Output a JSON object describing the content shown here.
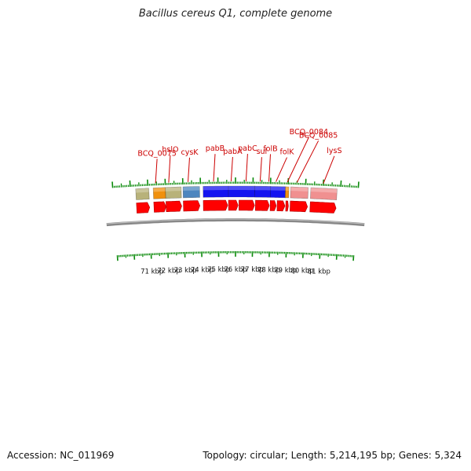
{
  "title": "Bacillus cereus Q1, complete genome",
  "accession": "Accession: NC_011969",
  "summary": "Topology: circular; Length: 5,214,195 bp; Genes: 5,324",
  "colors": {
    "cds_arrow": "#ff0000",
    "gene_label": "#cc0000",
    "tick": "#0a8a0a",
    "backbone": "#888888",
    "olive": "#b8b27a",
    "orange": "#f0900e",
    "steelblue": "#4d86bf",
    "blue": "#1414f0",
    "pink": "#f09090"
  },
  "scale_labels": [
    "71 kbp",
    "72 kbp",
    "73 kbp",
    "74 kbp",
    "75 kbp",
    "76 kbp",
    "77 kbp",
    "78 kbp",
    "79 kbp",
    "80 kbp",
    "81 kbp"
  ],
  "feature_bars": [
    {
      "name": "olive-left",
      "kbp_start": 70.3,
      "kbp_end": 71.05,
      "color": "#b8b27a"
    },
    {
      "name": "BCQ_0075",
      "kbp_start": 71.3,
      "kbp_end": 72.0,
      "color": "#f0900e"
    },
    {
      "name": "hslO",
      "kbp_start": 72.0,
      "kbp_end": 72.9,
      "color": "#b8b27a"
    },
    {
      "name": "cysK",
      "kbp_start": 73.0,
      "kbp_end": 73.95,
      "color": "#4d86bf"
    },
    {
      "name": "pabB",
      "kbp_start": 74.15,
      "kbp_end": 75.6,
      "color": "#1414f0"
    },
    {
      "name": "pabA-pabC",
      "kbp_start": 75.6,
      "kbp_end": 77.1,
      "color": "#1414f0"
    },
    {
      "name": "sul",
      "kbp_start": 77.1,
      "kbp_end": 78.0,
      "color": "#1414f0"
    },
    {
      "name": "folB-folK",
      "kbp_start": 78.0,
      "kbp_end": 78.85,
      "color": "#1414f0"
    },
    {
      "name": "BCQ_0084",
      "kbp_start": 78.85,
      "kbp_end": 79.05,
      "color": "#f0900e"
    },
    {
      "name": "BCQ_0085",
      "kbp_start": 79.15,
      "kbp_end": 80.15,
      "color": "#f09090"
    },
    {
      "name": "lysS",
      "kbp_start": 80.3,
      "kbp_end": 81.8,
      "color": "#f09090"
    }
  ],
  "cds_arrows": [
    {
      "kbp_start": 70.3,
      "kbp_end": 71.05
    },
    {
      "kbp_start": 71.3,
      "kbp_end": 72.0
    },
    {
      "kbp_start": 72.0,
      "kbp_end": 72.9
    },
    {
      "kbp_start": 73.0,
      "kbp_end": 73.95
    },
    {
      "kbp_start": 74.15,
      "kbp_end": 75.55
    },
    {
      "kbp_start": 75.6,
      "kbp_end": 76.15
    },
    {
      "kbp_start": 76.2,
      "kbp_end": 77.1
    },
    {
      "kbp_start": 77.15,
      "kbp_end": 77.95
    },
    {
      "kbp_start": 78.0,
      "kbp_end": 78.35
    },
    {
      "kbp_start": 78.4,
      "kbp_end": 78.85
    },
    {
      "kbp_start": 78.9,
      "kbp_end": 79.05
    },
    {
      "kbp_start": 79.15,
      "kbp_end": 80.15
    },
    {
      "kbp_start": 80.3,
      "kbp_end": 81.8
    }
  ],
  "gene_labels": [
    {
      "text": "BCQ_0075",
      "kbp": 71.45
    },
    {
      "text": "hslO",
      "kbp": 72.2
    },
    {
      "text": "cysK",
      "kbp": 73.3
    },
    {
      "text": "pabB",
      "kbp": 74.75
    },
    {
      "text": "pabA",
      "kbp": 75.75
    },
    {
      "text": "pabC",
      "kbp": 76.6
    },
    {
      "text": "sul",
      "kbp": 77.4
    },
    {
      "text": "folB",
      "kbp": 77.9
    },
    {
      "text": "folK",
      "kbp": 78.3
    },
    {
      "text": "BCQ_0084",
      "kbp": 78.95
    },
    {
      "text": "BCQ_0085",
      "kbp": 79.5
    },
    {
      "text": "lysS",
      "kbp": 81.0
    }
  ]
}
